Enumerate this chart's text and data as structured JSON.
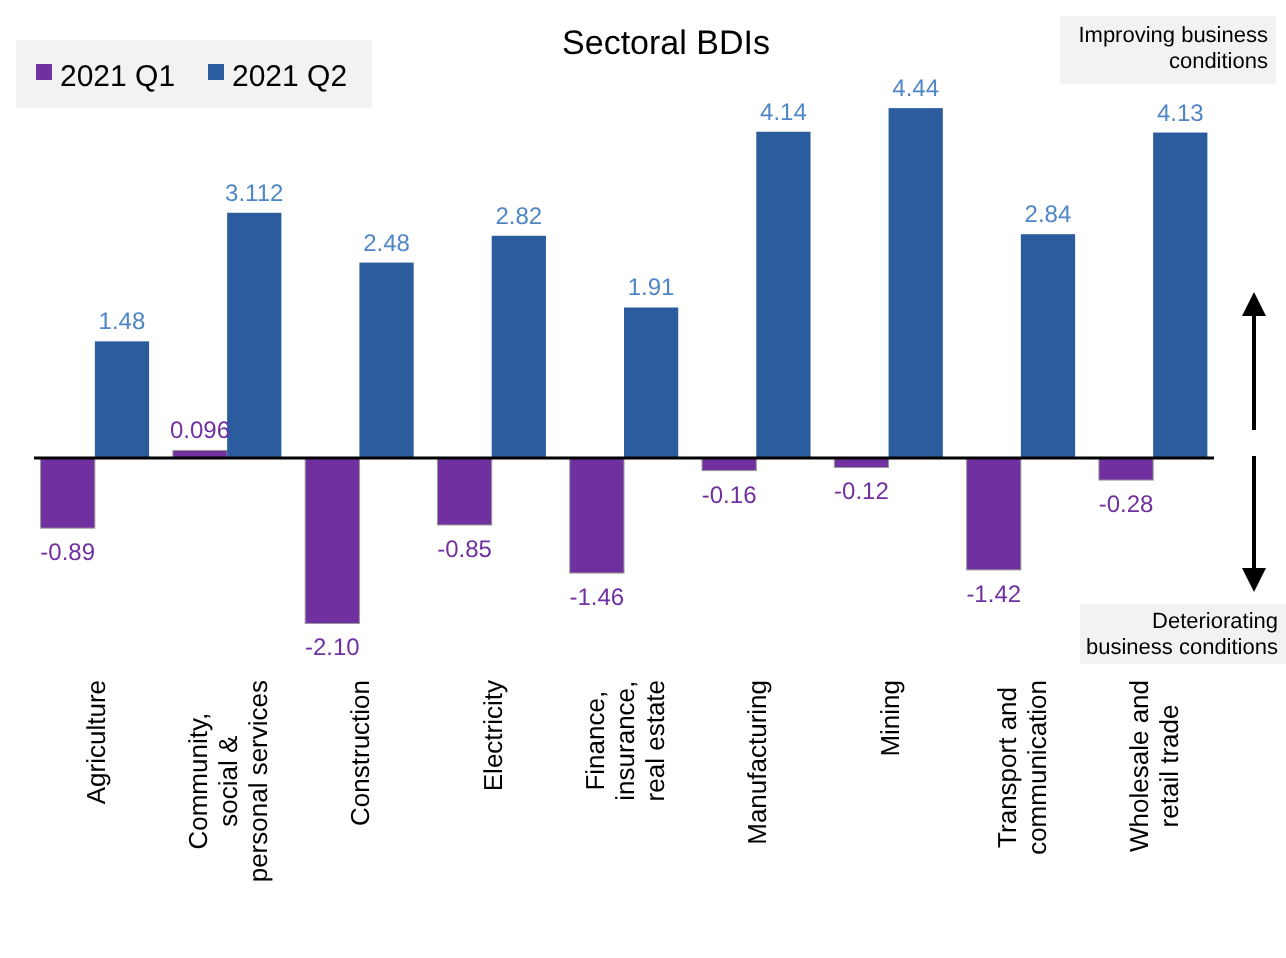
{
  "chart_data": {
    "type": "bar",
    "title": "Sectoral BDIs",
    "categories": [
      "Agriculture",
      "Community,\nsocial &\npersonal services",
      "Construction",
      "Electricity",
      "Finance,\ninsurance,\nreal estate",
      "Manufacturing",
      "Mining",
      "Transport and\ncommunication",
      "Wholesale and\nretail trade"
    ],
    "series": [
      {
        "name": "2021 Q1",
        "color": "#7030a0",
        "values": [
          -0.89,
          0.096,
          -2.1,
          -0.85,
          -1.46,
          -0.16,
          -0.12,
          -1.42,
          -0.28
        ],
        "value_labels": [
          "-0.89",
          "0.096",
          "-2.10",
          "-0.85",
          "-1.46",
          "-0.16",
          "-0.12",
          "-1.42",
          "-0.28"
        ]
      },
      {
        "name": "2021 Q2",
        "color": "#2a5c9e",
        "values": [
          1.48,
          3.112,
          2.48,
          2.82,
          1.91,
          4.14,
          4.44,
          2.84,
          4.13
        ],
        "value_labels": [
          "1.48",
          "3.112",
          "2.48",
          "2.82",
          "1.91",
          "4.14",
          "4.44",
          "2.84",
          "4.13"
        ]
      }
    ],
    "legend": "top left",
    "tick_labels": "x",
    "annotations": [
      "Improving business\nconditions",
      "Deteriorating\nbusiness conditions"
    ]
  }
}
